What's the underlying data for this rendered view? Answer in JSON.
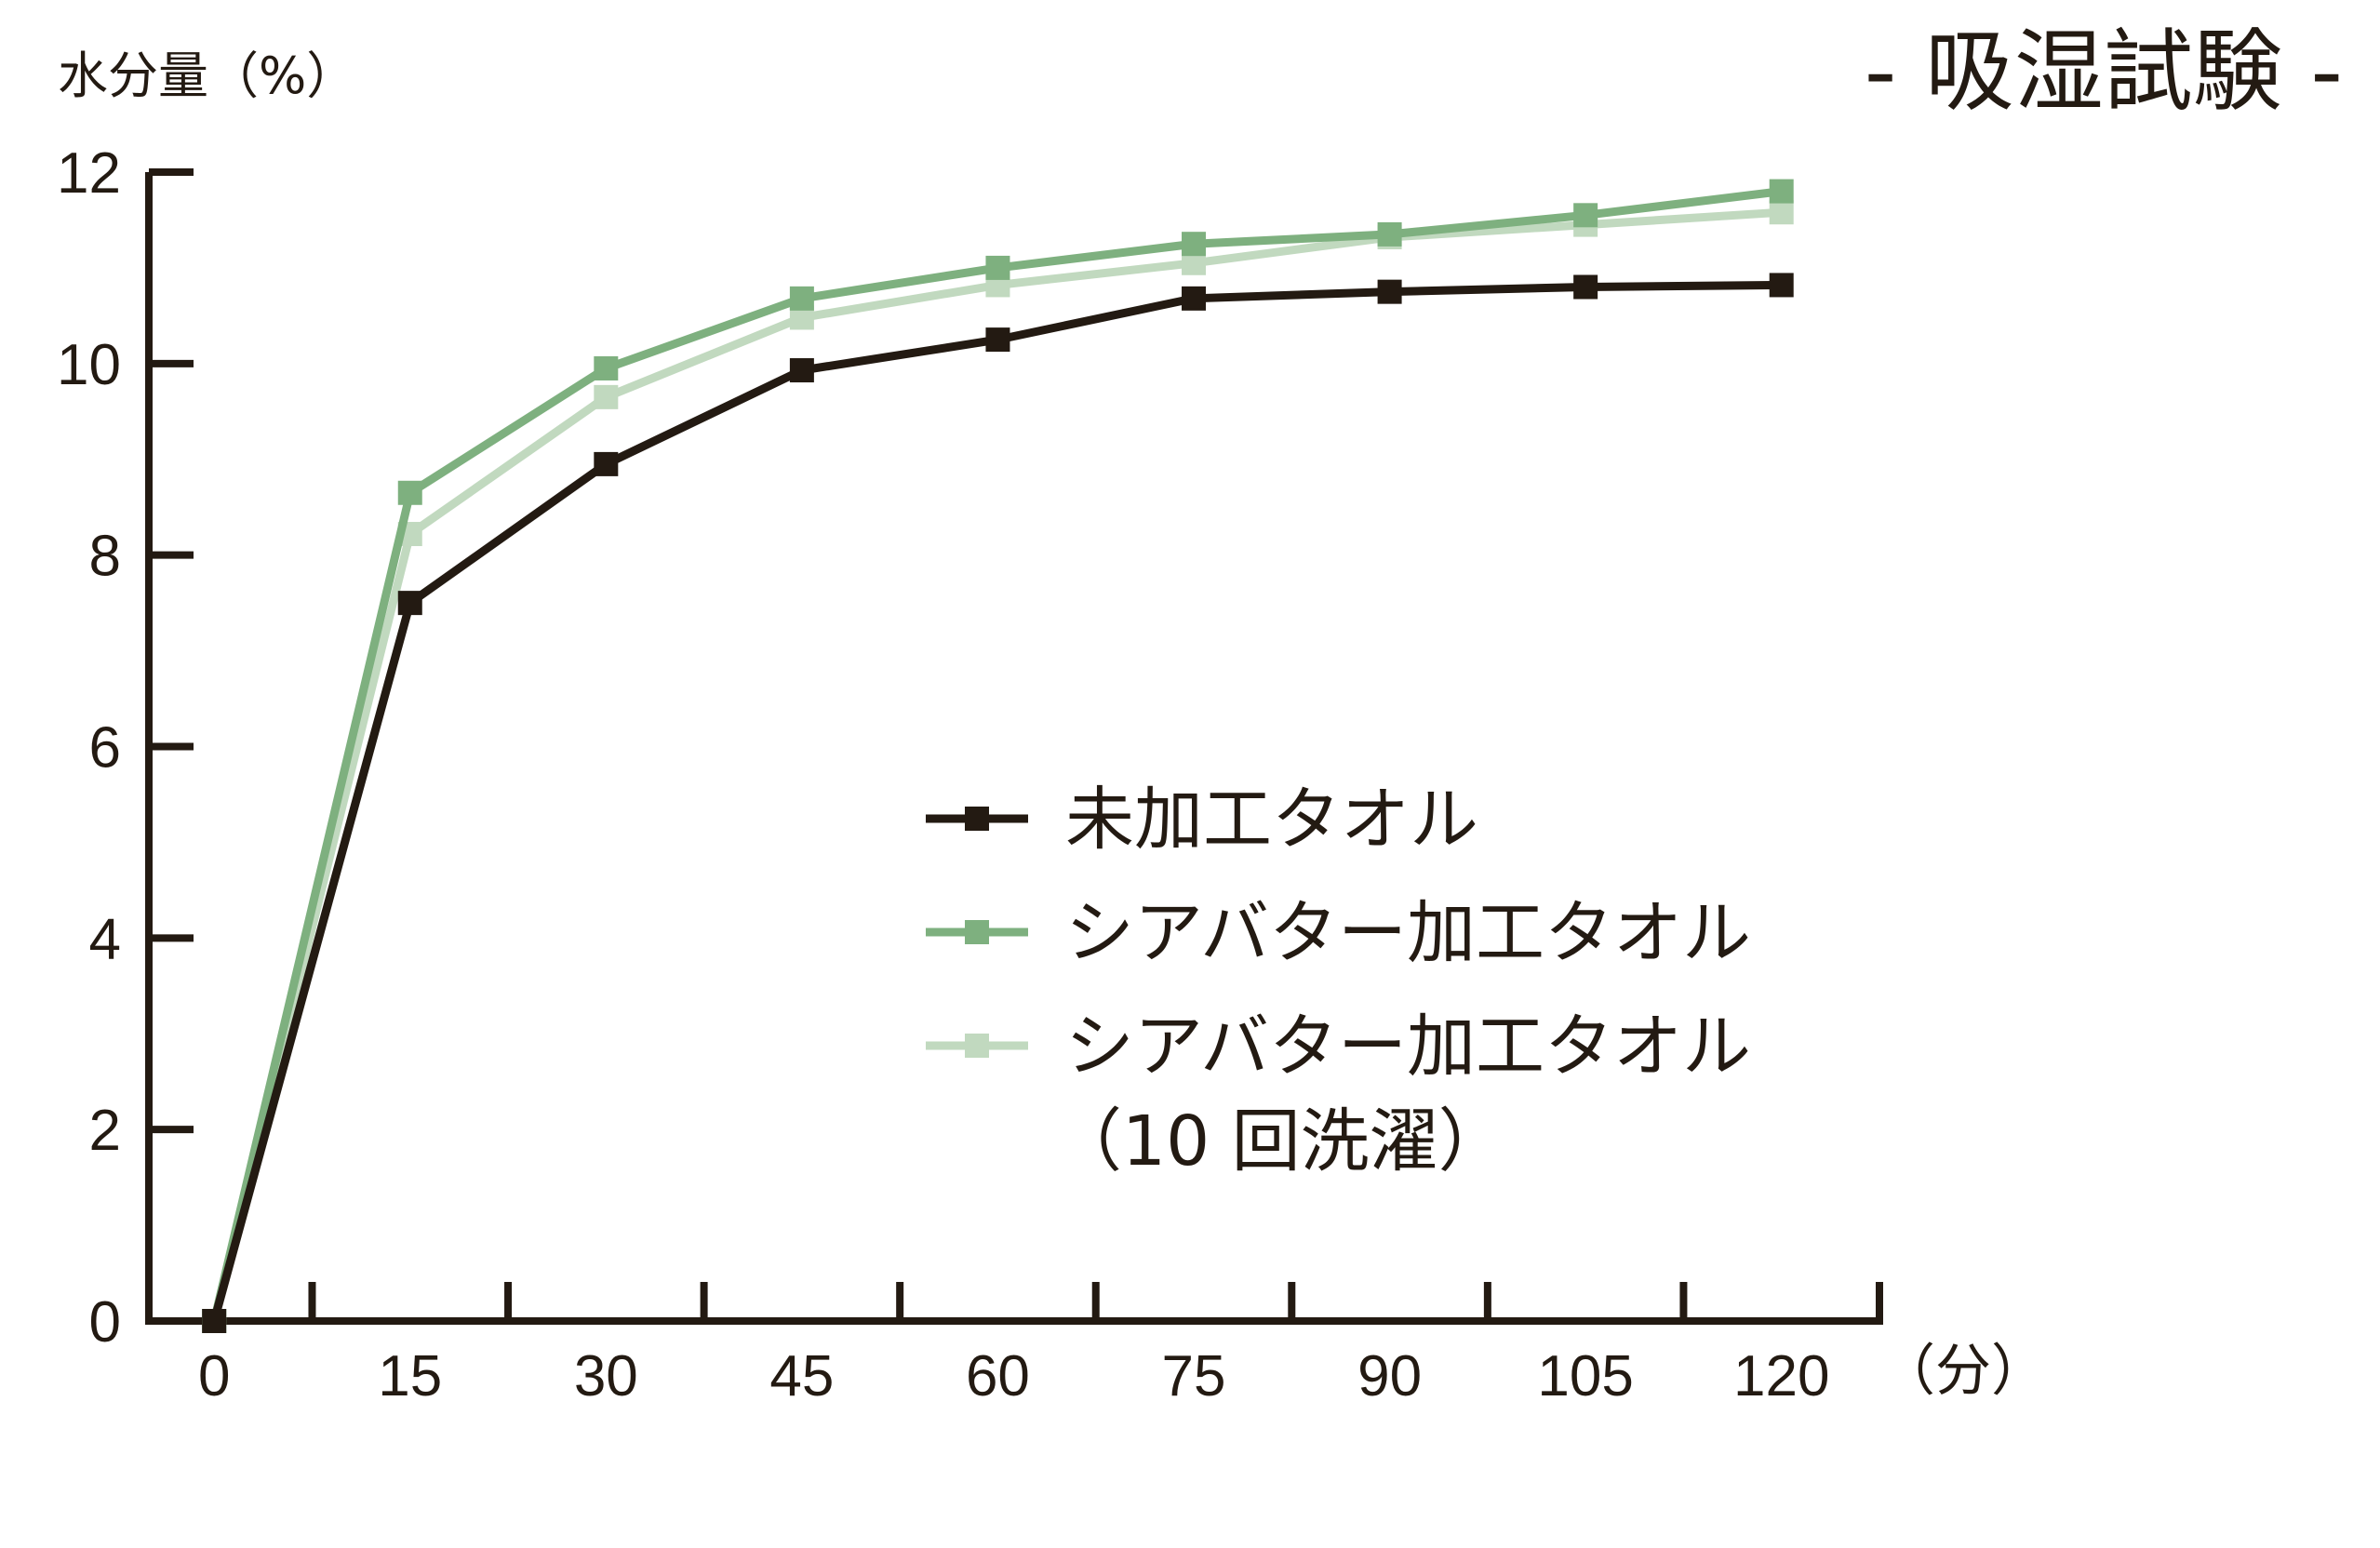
{
  "chart_data": {
    "type": "line",
    "title": "- 吸湿試験 -",
    "ylabel": "水分量（%）",
    "xunit": "（分）",
    "x": [
      0,
      15,
      30,
      45,
      60,
      75,
      90,
      105,
      120
    ],
    "x_tick_labels": [
      "0",
      "15",
      "30",
      "45",
      "60",
      "75",
      "90",
      "105",
      "120"
    ],
    "y_ticks": [
      0,
      2,
      4,
      6,
      8,
      10,
      12
    ],
    "y_tick_labels": [
      "0",
      "2",
      "4",
      "6",
      "8",
      "10",
      "12"
    ],
    "xlim": [
      -5,
      127.5
    ],
    "ylim": [
      0,
      12
    ],
    "grid": false,
    "legend_position": "center-right",
    "series": [
      {
        "name": "未加工タオル",
        "color": "#231a12",
        "values": [
          0,
          7.5,
          8.95,
          9.93,
          10.25,
          10.68,
          10.75,
          10.8,
          10.82
        ]
      },
      {
        "name": "シアバター加工タオル",
        "color": "#7eb07f",
        "values": [
          0,
          8.65,
          9.95,
          10.68,
          11.0,
          11.25,
          11.35,
          11.55,
          11.8
        ]
      },
      {
        "name": "シアバター加工タオル",
        "name_line2": "（10 回洗濯）",
        "color": "#c1d9bf",
        "values": [
          0,
          8.22,
          9.65,
          10.48,
          10.82,
          11.05,
          11.32,
          11.45,
          11.58
        ]
      }
    ]
  }
}
